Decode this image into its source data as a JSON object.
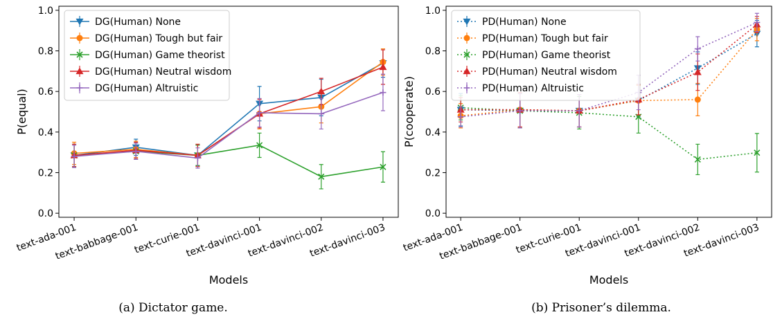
{
  "chart_data": [
    {
      "type": "line",
      "xlabel": "Models",
      "ylabel": "P(equal)",
      "ylim": [
        -0.02,
        1.02
      ],
      "yticks": [
        "0.0",
        "0.2",
        "0.4",
        "0.6",
        "0.8",
        "1.0"
      ],
      "yticks_values": [
        0,
        0.2,
        0.4,
        0.6,
        0.8,
        1.0
      ],
      "categories": [
        "text-ada-001",
        "text-babbage-001",
        "text-curie-001",
        "text-davinci-001",
        "text-davinci-002",
        "text-davinci-003"
      ],
      "line_style": "solid",
      "legend_position": "upper-left",
      "grid": false,
      "caption": "(a) Dictator game.",
      "series": [
        {
          "name": "DG(Human) None",
          "color": "#1f77b4",
          "marker": "triangle-down",
          "values": [
            0.285,
            0.325,
            0.285,
            0.54,
            0.57,
            0.74
          ],
          "errors": [
            0.055,
            0.04,
            0.05,
            0.085,
            0.09,
            0.07
          ]
        },
        {
          "name": "DG(Human) Tough but fair",
          "color": "#ff7f0e",
          "marker": "circle",
          "values": [
            0.295,
            0.315,
            0.285,
            0.49,
            0.525,
            0.745
          ],
          "errors": [
            0.055,
            0.04,
            0.055,
            0.075,
            0.08,
            0.065
          ]
        },
        {
          "name": "DG(Human) Game theorist",
          "color": "#2ca02c",
          "marker": "x",
          "values": [
            0.285,
            0.305,
            0.285,
            0.335,
            0.18,
            0.228
          ],
          "errors": [
            0.055,
            0.04,
            0.05,
            0.06,
            0.06,
            0.075
          ]
        },
        {
          "name": "DG(Human) Neutral wisdom",
          "color": "#d62728",
          "marker": "triangle-up",
          "values": [
            0.285,
            0.31,
            0.285,
            0.49,
            0.6,
            0.72
          ],
          "errors": [
            0.055,
            0.04,
            0.055,
            0.07,
            0.065,
            0.085
          ]
        },
        {
          "name": "DG(Human) Altruistic",
          "color": "#9467bd",
          "marker": "plus",
          "values": [
            0.28,
            0.305,
            0.272,
            0.495,
            0.49,
            0.595
          ],
          "errors": [
            0.055,
            0.04,
            0.05,
            0.07,
            0.075,
            0.09
          ]
        }
      ]
    },
    {
      "type": "line",
      "xlabel": "Models",
      "ylabel": "P(cooperate)",
      "ylim": [
        -0.02,
        1.02
      ],
      "yticks": [
        "0.0",
        "0.2",
        "0.4",
        "0.6",
        "0.8",
        "1.0"
      ],
      "yticks_values": [
        0,
        0.2,
        0.4,
        0.6,
        0.8,
        1.0
      ],
      "categories": [
        "text-ada-001",
        "text-babbage-001",
        "text-curie-001",
        "text-davinci-001",
        "text-davinci-002",
        "text-davinci-003"
      ],
      "line_style": "dotted",
      "legend_position": "upper-left",
      "grid": false,
      "caption": "(b) Prisoner’s dilemma.",
      "series": [
        {
          "name": "PD(Human) None",
          "color": "#1f77b4",
          "marker": "triangle-down",
          "values": [
            0.51,
            0.505,
            0.505,
            0.555,
            0.715,
            0.885
          ],
          "errors": [
            0.08,
            0.085,
            0.08,
            0.08,
            0.08,
            0.065
          ]
        },
        {
          "name": "PD(Human) Tough but fair",
          "color": "#ff7f0e",
          "marker": "circle",
          "values": [
            0.48,
            0.51,
            0.505,
            0.555,
            0.56,
            0.905
          ],
          "errors": [
            0.06,
            0.085,
            0.08,
            0.075,
            0.08,
            0.055
          ]
        },
        {
          "name": "PD(Human) Game theorist",
          "color": "#2ca02c",
          "marker": "x",
          "values": [
            0.52,
            0.505,
            0.495,
            0.475,
            0.265,
            0.298
          ],
          "errors": [
            0.06,
            0.085,
            0.08,
            0.08,
            0.075,
            0.095
          ]
        },
        {
          "name": "PD(Human) Neutral wisdom",
          "color": "#d62728",
          "marker": "triangle-up",
          "values": [
            0.51,
            0.51,
            0.505,
            0.56,
            0.695,
            0.93
          ],
          "errors": [
            0.06,
            0.085,
            0.08,
            0.075,
            0.09,
            0.04
          ]
        },
        {
          "name": "PD(Human) Altruistic",
          "color": "#9467bd",
          "marker": "plus",
          "values": [
            0.475,
            0.505,
            0.505,
            0.595,
            0.81,
            0.94
          ],
          "errors": [
            0.05,
            0.085,
            0.08,
            0.085,
            0.06,
            0.045
          ]
        }
      ]
    }
  ]
}
